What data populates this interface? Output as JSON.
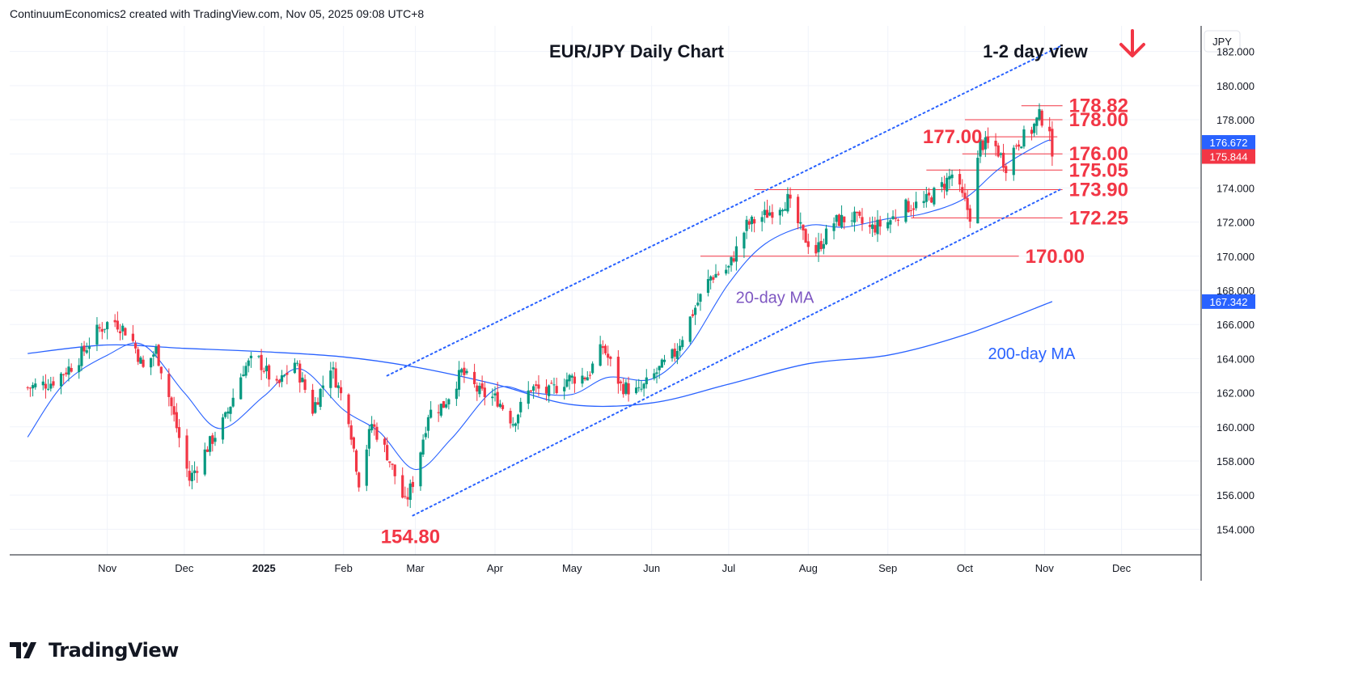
{
  "header": {
    "attribution": "ContinuumEconomics2 created with TradingView.com, Nov 05, 2025 09:08 UTC+8"
  },
  "branding": {
    "logo_text": "TradingView"
  },
  "chart_data": {
    "type": "candlestick",
    "title": "EUR/JPY Daily Chart",
    "subtitle": "1-2 day view",
    "currency": "JPY",
    "grid": true,
    "ylim": [
      152.5,
      183.5
    ],
    "y_ticks": [
      "182.000",
      "180.000",
      "178.000",
      "176.000",
      "174.000",
      "172.000",
      "170.000",
      "168.000",
      "166.000",
      "164.000",
      "162.000",
      "160.000",
      "158.000",
      "156.000",
      "154.000"
    ],
    "x_ticks": [
      {
        "label": "Nov",
        "date": "2024-11-01",
        "bold": false
      },
      {
        "label": "Dec",
        "date": "2024-12-01",
        "bold": false
      },
      {
        "label": "2025",
        "date": "2025-01-01",
        "bold": true
      },
      {
        "label": "Feb",
        "date": "2025-02-01",
        "bold": false
      },
      {
        "label": "Mar",
        "date": "2025-03-01",
        "bold": false
      },
      {
        "label": "Apr",
        "date": "2025-04-01",
        "bold": false
      },
      {
        "label": "May",
        "date": "2025-05-01",
        "bold": false
      },
      {
        "label": "Jun",
        "date": "2025-06-01",
        "bold": false
      },
      {
        "label": "Jul",
        "date": "2025-07-01",
        "bold": false
      },
      {
        "label": "Aug",
        "date": "2025-08-01",
        "bold": false
      },
      {
        "label": "Sep",
        "date": "2025-09-01",
        "bold": false
      },
      {
        "label": "Oct",
        "date": "2025-10-01",
        "bold": false
      },
      {
        "label": "Nov",
        "date": "2025-11-01",
        "bold": false
      },
      {
        "label": "Dec",
        "date": "2025-12-01",
        "bold": false
      }
    ],
    "price_badges": [
      {
        "value": 176.672,
        "label": "176.672",
        "color": "#2962ff"
      },
      {
        "value": 175.844,
        "label": "175.844",
        "color": "#f23645"
      },
      {
        "value": 167.342,
        "label": "167.342",
        "color": "#2962ff"
      }
    ],
    "levels": [
      {
        "label": "178.82",
        "value": 178.82,
        "from": "2025-10-23",
        "to": "2025-11-08"
      },
      {
        "label": "178.00",
        "value": 178.0,
        "from": "2025-10-01",
        "to": "2025-11-08"
      },
      {
        "label": "177.00",
        "value": 177.0,
        "from": "2025-10-09",
        "to": "2025-11-06",
        "label_side": "left"
      },
      {
        "label": "176.00",
        "value": 176.0,
        "from": "2025-09-30",
        "to": "2025-11-08"
      },
      {
        "label": "175.05",
        "value": 175.05,
        "from": "2025-09-16",
        "to": "2025-11-08"
      },
      {
        "label": "173.90",
        "value": 173.9,
        "from": "2025-07-11",
        "to": "2025-11-08"
      },
      {
        "label": "172.25",
        "value": 172.25,
        "from": "2025-09-10",
        "to": "2025-11-08"
      },
      {
        "label": "170.00",
        "value": 170.0,
        "from": "2025-06-20",
        "to": "2025-10-22"
      }
    ],
    "annotations": [
      {
        "text": "154.80",
        "date": "2025-02-28",
        "value": 154.8
      },
      {
        "text": "20-day MA",
        "color": "#7e57c2"
      },
      {
        "text": "200-day MA",
        "color": "#2962ff"
      }
    ],
    "channel": [
      {
        "from": {
          "date": "2025-02-18",
          "value": 163.0
        },
        "to": {
          "date": "2025-11-07",
          "value": 182.3
        }
      },
      {
        "from": {
          "date": "2025-02-28",
          "value": 154.8
        },
        "to": {
          "date": "2025-11-07",
          "value": 173.9
        }
      }
    ],
    "ma20": [
      {
        "date": "2024-10-01",
        "value": 159.4
      },
      {
        "date": "2024-10-15",
        "value": 162.5
      },
      {
        "date": "2024-11-01",
        "value": 164.2
      },
      {
        "date": "2024-11-15",
        "value": 164.8
      },
      {
        "date": "2024-12-01",
        "value": 162.0
      },
      {
        "date": "2024-12-15",
        "value": 159.9
      },
      {
        "date": "2025-01-01",
        "value": 161.8
      },
      {
        "date": "2025-01-15",
        "value": 163.4
      },
      {
        "date": "2025-02-01",
        "value": 161.0
      },
      {
        "date": "2025-02-15",
        "value": 159.7
      },
      {
        "date": "2025-03-01",
        "value": 157.5
      },
      {
        "date": "2025-03-15",
        "value": 159.3
      },
      {
        "date": "2025-04-01",
        "value": 162.2
      },
      {
        "date": "2025-04-15",
        "value": 162.0
      },
      {
        "date": "2025-05-01",
        "value": 161.9
      },
      {
        "date": "2025-05-15",
        "value": 162.9
      },
      {
        "date": "2025-06-01",
        "value": 162.8
      },
      {
        "date": "2025-06-15",
        "value": 164.6
      },
      {
        "date": "2025-07-01",
        "value": 168.4
      },
      {
        "date": "2025-07-15",
        "value": 170.7
      },
      {
        "date": "2025-08-01",
        "value": 171.8
      },
      {
        "date": "2025-08-15",
        "value": 171.7
      },
      {
        "date": "2025-09-01",
        "value": 172.2
      },
      {
        "date": "2025-09-15",
        "value": 172.5
      },
      {
        "date": "2025-10-01",
        "value": 173.4
      },
      {
        "date": "2025-10-15",
        "value": 175.2
      },
      {
        "date": "2025-11-01",
        "value": 176.7
      },
      {
        "date": "2025-11-04",
        "value": 176.672
      }
    ],
    "ma200": [
      {
        "date": "2024-10-01",
        "value": 164.3
      },
      {
        "date": "2024-11-01",
        "value": 164.8
      },
      {
        "date": "2024-12-01",
        "value": 164.6
      },
      {
        "date": "2025-01-01",
        "value": 164.4
      },
      {
        "date": "2025-02-01",
        "value": 164.1
      },
      {
        "date": "2025-03-01",
        "value": 163.5
      },
      {
        "date": "2025-04-01",
        "value": 162.5
      },
      {
        "date": "2025-05-01",
        "value": 161.3
      },
      {
        "date": "2025-06-01",
        "value": 161.4
      },
      {
        "date": "2025-07-01",
        "value": 162.5
      },
      {
        "date": "2025-08-01",
        "value": 163.7
      },
      {
        "date": "2025-09-01",
        "value": 164.2
      },
      {
        "date": "2025-10-01",
        "value": 165.4
      },
      {
        "date": "2025-11-04",
        "value": 167.342
      }
    ],
    "price_path": [
      {
        "date": "2024-10-01",
        "value": 162.3
      },
      {
        "date": "2024-10-10",
        "value": 162.6
      },
      {
        "date": "2024-10-20",
        "value": 163.8
      },
      {
        "date": "2024-10-28",
        "value": 165.6
      },
      {
        "date": "2024-11-03",
        "value": 166.3
      },
      {
        "date": "2024-11-10",
        "value": 165.4
      },
      {
        "date": "2024-11-15",
        "value": 163.4
      },
      {
        "date": "2024-11-20",
        "value": 164.5
      },
      {
        "date": "2024-11-25",
        "value": 161.8
      },
      {
        "date": "2024-12-03",
        "value": 156.9
      },
      {
        "date": "2024-12-10",
        "value": 158.8
      },
      {
        "date": "2024-12-17",
        "value": 160.5
      },
      {
        "date": "2024-12-24",
        "value": 163.4
      },
      {
        "date": "2024-12-29",
        "value": 164.1
      },
      {
        "date": "2025-01-06",
        "value": 162.3
      },
      {
        "date": "2025-01-13",
        "value": 163.8
      },
      {
        "date": "2025-01-20",
        "value": 161.0
      },
      {
        "date": "2025-01-27",
        "value": 163.6
      },
      {
        "date": "2025-02-03",
        "value": 160.6
      },
      {
        "date": "2025-02-07",
        "value": 156.8
      },
      {
        "date": "2025-02-12",
        "value": 160.2
      },
      {
        "date": "2025-02-18",
        "value": 158.4
      },
      {
        "date": "2025-02-25",
        "value": 155.5
      },
      {
        "date": "2025-03-01",
        "value": 157.2
      },
      {
        "date": "2025-03-06",
        "value": 160.8
      },
      {
        "date": "2025-03-12",
        "value": 161.3
      },
      {
        "date": "2025-03-19",
        "value": 163.2
      },
      {
        "date": "2025-03-26",
        "value": 162.0
      },
      {
        "date": "2025-04-02",
        "value": 161.6
      },
      {
        "date": "2025-04-08",
        "value": 160.3
      },
      {
        "date": "2025-04-15",
        "value": 162.3
      },
      {
        "date": "2025-04-22",
        "value": 162.0
      },
      {
        "date": "2025-04-29",
        "value": 162.8
      },
      {
        "date": "2025-05-07",
        "value": 163.0
      },
      {
        "date": "2025-05-13",
        "value": 164.7
      },
      {
        "date": "2025-05-20",
        "value": 162.4
      },
      {
        "date": "2025-05-27",
        "value": 162.0
      },
      {
        "date": "2025-06-03",
        "value": 163.2
      },
      {
        "date": "2025-06-10",
        "value": 164.3
      },
      {
        "date": "2025-06-17",
        "value": 166.7
      },
      {
        "date": "2025-06-24",
        "value": 168.8
      },
      {
        "date": "2025-07-01",
        "value": 169.3
      },
      {
        "date": "2025-07-08",
        "value": 171.8
      },
      {
        "date": "2025-07-15",
        "value": 172.4
      },
      {
        "date": "2025-07-24",
        "value": 173.3
      },
      {
        "date": "2025-07-30",
        "value": 171.2
      },
      {
        "date": "2025-08-04",
        "value": 170.3
      },
      {
        "date": "2025-08-11",
        "value": 172.0
      },
      {
        "date": "2025-08-18",
        "value": 172.3
      },
      {
        "date": "2025-08-25",
        "value": 171.6
      },
      {
        "date": "2025-09-01",
        "value": 172.0
      },
      {
        "date": "2025-09-08",
        "value": 172.9
      },
      {
        "date": "2025-09-15",
        "value": 173.1
      },
      {
        "date": "2025-09-22",
        "value": 174.1
      },
      {
        "date": "2025-09-26",
        "value": 174.8
      },
      {
        "date": "2025-10-01",
        "value": 173.1
      },
      {
        "date": "2025-10-03",
        "value": 172.4
      },
      {
        "date": "2025-10-07",
        "value": 176.6
      },
      {
        "date": "2025-10-13",
        "value": 176.4
      },
      {
        "date": "2025-10-17",
        "value": 175.3
      },
      {
        "date": "2025-10-21",
        "value": 176.6
      },
      {
        "date": "2025-10-27",
        "value": 177.4
      },
      {
        "date": "2025-10-30",
        "value": 178.2
      },
      {
        "date": "2025-11-03",
        "value": 177.6
      },
      {
        "date": "2025-11-04",
        "value": 175.844
      }
    ],
    "colors": {
      "up": "#089981",
      "down": "#f23645",
      "ma20": "#2962ff",
      "ma200": "#2962ff",
      "level_line": "#f23645",
      "level_text": "#f23645",
      "channel": "#2962ff",
      "grid": "#f0f3fa",
      "axis_text": "#131722",
      "arrow": "#f23645"
    }
  }
}
